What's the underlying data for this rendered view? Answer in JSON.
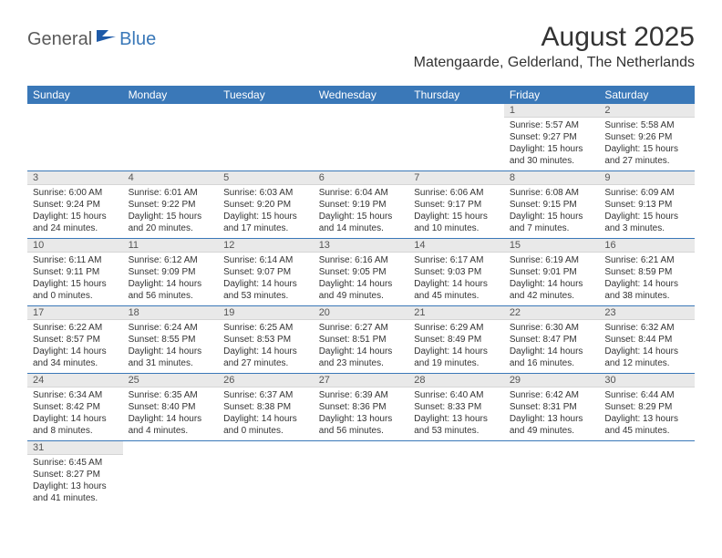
{
  "brand": {
    "part1": "General",
    "part2": "Blue"
  },
  "title": "August 2025",
  "location": "Matengaarde, Gelderland, The Netherlands",
  "colors": {
    "header_bg": "#3a78b8",
    "header_text": "#ffffff",
    "daynum_bg": "#e9e9e9",
    "text": "#333333",
    "row_border": "#3a78b8"
  },
  "fonts": {
    "title_size": 30,
    "location_size": 16,
    "header_size": 12,
    "body_size": 10
  },
  "dow": [
    "Sunday",
    "Monday",
    "Tuesday",
    "Wednesday",
    "Thursday",
    "Friday",
    "Saturday"
  ],
  "weeks": [
    [
      null,
      null,
      null,
      null,
      null,
      {
        "n": "1",
        "sr": "Sunrise: 5:57 AM",
        "ss": "Sunset: 9:27 PM",
        "dl": "Daylight: 15 hours and 30 minutes."
      },
      {
        "n": "2",
        "sr": "Sunrise: 5:58 AM",
        "ss": "Sunset: 9:26 PM",
        "dl": "Daylight: 15 hours and 27 minutes."
      }
    ],
    [
      {
        "n": "3",
        "sr": "Sunrise: 6:00 AM",
        "ss": "Sunset: 9:24 PM",
        "dl": "Daylight: 15 hours and 24 minutes."
      },
      {
        "n": "4",
        "sr": "Sunrise: 6:01 AM",
        "ss": "Sunset: 9:22 PM",
        "dl": "Daylight: 15 hours and 20 minutes."
      },
      {
        "n": "5",
        "sr": "Sunrise: 6:03 AM",
        "ss": "Sunset: 9:20 PM",
        "dl": "Daylight: 15 hours and 17 minutes."
      },
      {
        "n": "6",
        "sr": "Sunrise: 6:04 AM",
        "ss": "Sunset: 9:19 PM",
        "dl": "Daylight: 15 hours and 14 minutes."
      },
      {
        "n": "7",
        "sr": "Sunrise: 6:06 AM",
        "ss": "Sunset: 9:17 PM",
        "dl": "Daylight: 15 hours and 10 minutes."
      },
      {
        "n": "8",
        "sr": "Sunrise: 6:08 AM",
        "ss": "Sunset: 9:15 PM",
        "dl": "Daylight: 15 hours and 7 minutes."
      },
      {
        "n": "9",
        "sr": "Sunrise: 6:09 AM",
        "ss": "Sunset: 9:13 PM",
        "dl": "Daylight: 15 hours and 3 minutes."
      }
    ],
    [
      {
        "n": "10",
        "sr": "Sunrise: 6:11 AM",
        "ss": "Sunset: 9:11 PM",
        "dl": "Daylight: 15 hours and 0 minutes."
      },
      {
        "n": "11",
        "sr": "Sunrise: 6:12 AM",
        "ss": "Sunset: 9:09 PM",
        "dl": "Daylight: 14 hours and 56 minutes."
      },
      {
        "n": "12",
        "sr": "Sunrise: 6:14 AM",
        "ss": "Sunset: 9:07 PM",
        "dl": "Daylight: 14 hours and 53 minutes."
      },
      {
        "n": "13",
        "sr": "Sunrise: 6:16 AM",
        "ss": "Sunset: 9:05 PM",
        "dl": "Daylight: 14 hours and 49 minutes."
      },
      {
        "n": "14",
        "sr": "Sunrise: 6:17 AM",
        "ss": "Sunset: 9:03 PM",
        "dl": "Daylight: 14 hours and 45 minutes."
      },
      {
        "n": "15",
        "sr": "Sunrise: 6:19 AM",
        "ss": "Sunset: 9:01 PM",
        "dl": "Daylight: 14 hours and 42 minutes."
      },
      {
        "n": "16",
        "sr": "Sunrise: 6:21 AM",
        "ss": "Sunset: 8:59 PM",
        "dl": "Daylight: 14 hours and 38 minutes."
      }
    ],
    [
      {
        "n": "17",
        "sr": "Sunrise: 6:22 AM",
        "ss": "Sunset: 8:57 PM",
        "dl": "Daylight: 14 hours and 34 minutes."
      },
      {
        "n": "18",
        "sr": "Sunrise: 6:24 AM",
        "ss": "Sunset: 8:55 PM",
        "dl": "Daylight: 14 hours and 31 minutes."
      },
      {
        "n": "19",
        "sr": "Sunrise: 6:25 AM",
        "ss": "Sunset: 8:53 PM",
        "dl": "Daylight: 14 hours and 27 minutes."
      },
      {
        "n": "20",
        "sr": "Sunrise: 6:27 AM",
        "ss": "Sunset: 8:51 PM",
        "dl": "Daylight: 14 hours and 23 minutes."
      },
      {
        "n": "21",
        "sr": "Sunrise: 6:29 AM",
        "ss": "Sunset: 8:49 PM",
        "dl": "Daylight: 14 hours and 19 minutes."
      },
      {
        "n": "22",
        "sr": "Sunrise: 6:30 AM",
        "ss": "Sunset: 8:47 PM",
        "dl": "Daylight: 14 hours and 16 minutes."
      },
      {
        "n": "23",
        "sr": "Sunrise: 6:32 AM",
        "ss": "Sunset: 8:44 PM",
        "dl": "Daylight: 14 hours and 12 minutes."
      }
    ],
    [
      {
        "n": "24",
        "sr": "Sunrise: 6:34 AM",
        "ss": "Sunset: 8:42 PM",
        "dl": "Daylight: 14 hours and 8 minutes."
      },
      {
        "n": "25",
        "sr": "Sunrise: 6:35 AM",
        "ss": "Sunset: 8:40 PM",
        "dl": "Daylight: 14 hours and 4 minutes."
      },
      {
        "n": "26",
        "sr": "Sunrise: 6:37 AM",
        "ss": "Sunset: 8:38 PM",
        "dl": "Daylight: 14 hours and 0 minutes."
      },
      {
        "n": "27",
        "sr": "Sunrise: 6:39 AM",
        "ss": "Sunset: 8:36 PM",
        "dl": "Daylight: 13 hours and 56 minutes."
      },
      {
        "n": "28",
        "sr": "Sunrise: 6:40 AM",
        "ss": "Sunset: 8:33 PM",
        "dl": "Daylight: 13 hours and 53 minutes."
      },
      {
        "n": "29",
        "sr": "Sunrise: 6:42 AM",
        "ss": "Sunset: 8:31 PM",
        "dl": "Daylight: 13 hours and 49 minutes."
      },
      {
        "n": "30",
        "sr": "Sunrise: 6:44 AM",
        "ss": "Sunset: 8:29 PM",
        "dl": "Daylight: 13 hours and 45 minutes."
      }
    ],
    [
      {
        "n": "31",
        "sr": "Sunrise: 6:45 AM",
        "ss": "Sunset: 8:27 PM",
        "dl": "Daylight: 13 hours and 41 minutes."
      },
      null,
      null,
      null,
      null,
      null,
      null
    ]
  ]
}
